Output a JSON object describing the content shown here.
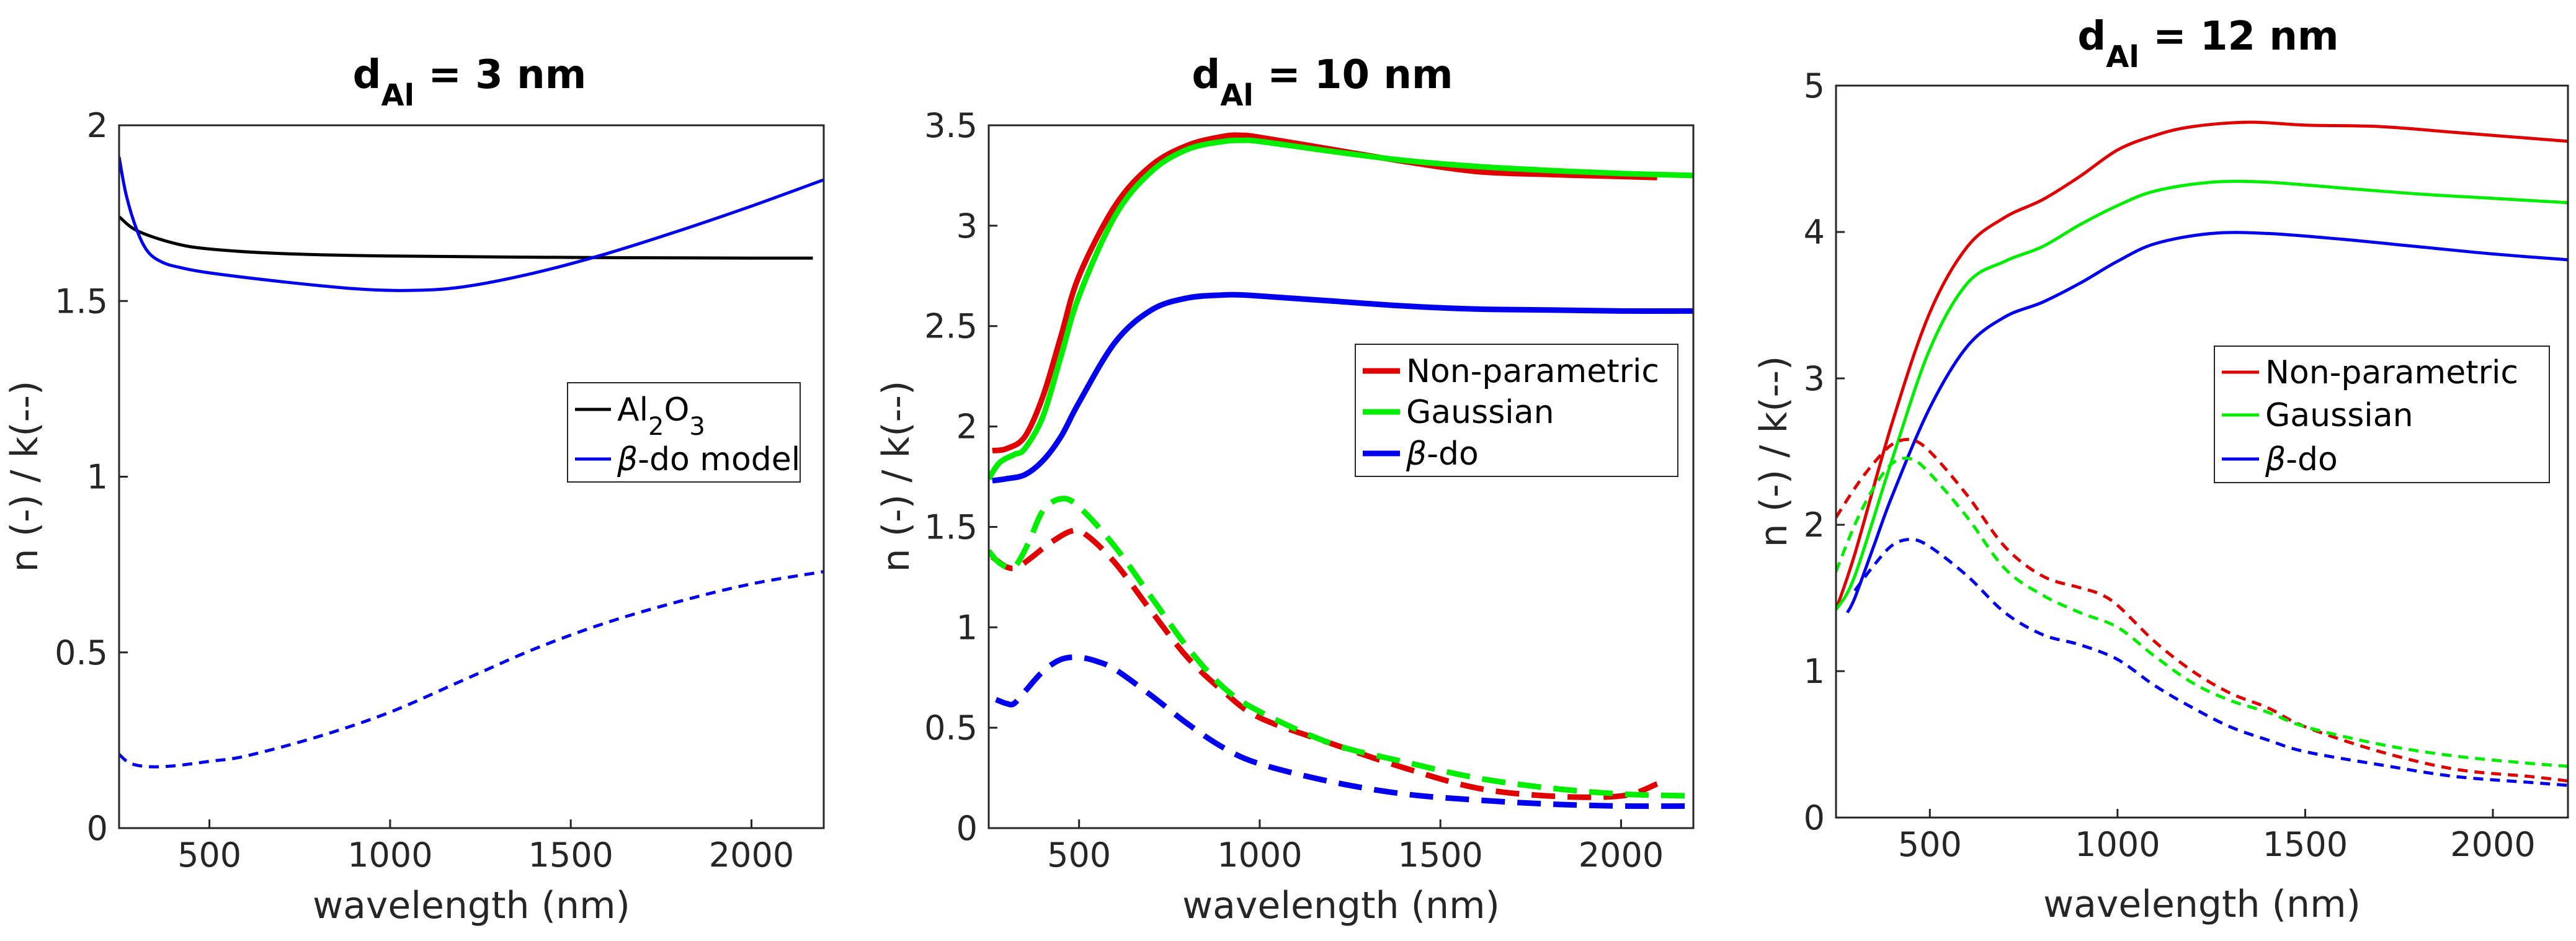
{
  "figure": {
    "panels": [
      {
        "title_main": "d",
        "title_sub": "Al",
        "title_rest": " = 3 nm",
        "xlabel": "wavelength (nm)",
        "ylabel": "n (-) / k(--)",
        "xticks": [
          "500",
          "1000",
          "1500",
          "2000"
        ],
        "yticks": [
          "0",
          "0.5",
          "1",
          "1.5",
          "2"
        ],
        "legend": [
          {
            "pre": "Al",
            "sub1": "2",
            "mid": "O",
            "sub2": "3",
            "post": ""
          },
          {
            "pre": "",
            "greek": "β",
            "post": "-do model"
          }
        ]
      },
      {
        "title_main": "d",
        "title_sub": "Al",
        "title_rest": " = 10 nm",
        "xlabel": "wavelength (nm)",
        "ylabel": "n (-) / k(--)",
        "xticks": [
          "500",
          "1000",
          "1500",
          "2000"
        ],
        "yticks": [
          "0",
          "0.5",
          "1",
          "1.5",
          "2",
          "2.5",
          "3",
          "3.5"
        ],
        "legend": [
          {
            "pre": "Non-parametric"
          },
          {
            "pre": "Gaussian"
          },
          {
            "pre": "",
            "greek": "β",
            "post": "-do"
          }
        ]
      },
      {
        "title_main": "d",
        "title_sub": "Al",
        "title_rest": " = 12 nm",
        "xlabel": "wavelength (nm)",
        "ylabel": "n (-) / k(--)",
        "xticks": [
          "500",
          "1000",
          "1500",
          "2000"
        ],
        "yticks": [
          "0",
          "1",
          "2",
          "3",
          "4",
          "5"
        ],
        "legend": [
          {
            "pre": "Non-parametric"
          },
          {
            "pre": "Gaussian"
          },
          {
            "pre": "",
            "greek": "β",
            "post": "-do"
          }
        ]
      }
    ]
  },
  "chart_data": [
    {
      "type": "line",
      "title": "dAl = 3 nm",
      "xlabel": "wavelength (nm)",
      "ylabel": "n (-) / k(--)",
      "xlim": [
        250,
        2200
      ],
      "ylim": [
        0,
        2
      ],
      "series": [
        {
          "name": "Al2O3",
          "kind": "n",
          "color": "#000000",
          "dash": "solid",
          "weight": "thin",
          "x": [
            250,
            300,
            400,
            500,
            700,
            1000,
            1500,
            2000,
            2170
          ],
          "y": [
            1.74,
            1.7,
            1.665,
            1.648,
            1.635,
            1.628,
            1.624,
            1.622,
            1.622
          ]
        },
        {
          "name": "β-do model",
          "kind": "n",
          "color": "#0000ee",
          "dash": "solid",
          "weight": "thin",
          "x": [
            250,
            270,
            300,
            330,
            370,
            420,
            500,
            700,
            900,
            1050,
            1200,
            1400,
            1600,
            1800,
            2000,
            2200
          ],
          "y": [
            1.91,
            1.8,
            1.7,
            1.64,
            1.61,
            1.595,
            1.58,
            1.555,
            1.535,
            1.53,
            1.54,
            1.58,
            1.635,
            1.7,
            1.77,
            1.845
          ]
        },
        {
          "name": "β-do model (k)",
          "kind": "k",
          "color": "#0000ee",
          "dash": "dashed",
          "weight": "thin",
          "x": [
            250,
            280,
            330,
            400,
            500,
            600,
            800,
            1000,
            1200,
            1400,
            1600,
            1800,
            2000,
            2200
          ],
          "y": [
            0.21,
            0.185,
            0.175,
            0.177,
            0.19,
            0.205,
            0.26,
            0.33,
            0.42,
            0.51,
            0.585,
            0.645,
            0.695,
            0.73
          ]
        }
      ]
    },
    {
      "type": "line",
      "title": "dAl = 10 nm",
      "xlabel": "wavelength (nm)",
      "ylabel": "n (-) / k(--)",
      "xlim": [
        250,
        2200
      ],
      "ylim": [
        0,
        3.5
      ],
      "series": [
        {
          "name": "Non-parametric",
          "kind": "n",
          "color": "#e00000",
          "dash": "solid",
          "weight": "thick",
          "x": [
            260,
            300,
            350,
            400,
            450,
            500,
            600,
            700,
            800,
            900,
            950,
            1000,
            1200,
            1400,
            1600,
            1800,
            2000,
            2100
          ],
          "y": [
            1.88,
            1.89,
            1.95,
            2.15,
            2.45,
            2.75,
            3.1,
            3.3,
            3.4,
            3.445,
            3.45,
            3.44,
            3.38,
            3.32,
            3.27,
            3.255,
            3.245,
            3.24
          ]
        },
        {
          "name": "Gaussian",
          "kind": "n",
          "color": "#00ee00",
          "dash": "solid",
          "weight": "thick",
          "x": [
            250,
            280,
            320,
            350,
            400,
            450,
            500,
            600,
            700,
            800,
            900,
            950,
            1000,
            1200,
            1400,
            1600,
            1800,
            2000,
            2200
          ],
          "y": [
            1.74,
            1.82,
            1.86,
            1.89,
            2.05,
            2.35,
            2.65,
            3.05,
            3.27,
            3.38,
            3.42,
            3.425,
            3.42,
            3.37,
            3.325,
            3.295,
            3.275,
            3.26,
            3.25
          ]
        },
        {
          "name": "β-do",
          "kind": "n",
          "color": "#0000ee",
          "dash": "solid",
          "weight": "thick",
          "x": [
            260,
            300,
            350,
            400,
            450,
            500,
            600,
            700,
            800,
            900,
            950,
            1000,
            1200,
            1400,
            1600,
            1800,
            2000,
            2200
          ],
          "y": [
            1.73,
            1.74,
            1.76,
            1.83,
            1.95,
            2.12,
            2.42,
            2.58,
            2.64,
            2.655,
            2.655,
            2.65,
            2.625,
            2.6,
            2.585,
            2.58,
            2.575,
            2.575
          ]
        },
        {
          "name": "Non-parametric (k)",
          "kind": "k",
          "color": "#e00000",
          "dash": "dashed",
          "weight": "thick",
          "x": [
            260,
            300,
            330,
            370,
            420,
            480,
            520,
            600,
            700,
            800,
            900,
            1000,
            1200,
            1400,
            1600,
            1800,
            2000,
            2100
          ],
          "y": [
            1.35,
            1.3,
            1.3,
            1.35,
            1.42,
            1.48,
            1.46,
            1.32,
            1.08,
            0.85,
            0.68,
            0.55,
            0.42,
            0.3,
            0.2,
            0.16,
            0.16,
            0.22
          ]
        },
        {
          "name": "Gaussian (k)",
          "kind": "k",
          "color": "#00ee00",
          "dash": "dashed",
          "weight": "thick",
          "x": [
            250,
            280,
            320,
            360,
            400,
            450,
            500,
            600,
            700,
            800,
            900,
            1000,
            1200,
            1400,
            1600,
            1800,
            2000,
            2200
          ],
          "y": [
            1.38,
            1.32,
            1.3,
            1.42,
            1.58,
            1.64,
            1.6,
            1.4,
            1.15,
            0.9,
            0.7,
            0.58,
            0.42,
            0.33,
            0.25,
            0.2,
            0.17,
            0.16
          ]
        },
        {
          "name": "β-do (k)",
          "kind": "k",
          "color": "#0000ee",
          "dash": "dashed",
          "weight": "thick",
          "x": [
            270,
            300,
            320,
            350,
            400,
            450,
            500,
            550,
            600,
            700,
            800,
            900,
            1000,
            1200,
            1400,
            1600,
            1800,
            2000,
            2200
          ],
          "y": [
            0.64,
            0.62,
            0.62,
            0.68,
            0.78,
            0.84,
            0.85,
            0.83,
            0.79,
            0.66,
            0.52,
            0.4,
            0.32,
            0.23,
            0.17,
            0.14,
            0.12,
            0.11,
            0.11
          ]
        }
      ]
    },
    {
      "type": "line",
      "title": "dAl = 12 nm",
      "xlabel": "wavelength (nm)",
      "ylabel": "n (-) / k(--)",
      "xlim": [
        250,
        2200
      ],
      "ylim": [
        0,
        5
      ],
      "series": [
        {
          "name": "Non-parametric",
          "kind": "n",
          "color": "#e00000",
          "dash": "solid",
          "weight": "thin",
          "x": [
            250,
            300,
            400,
            500,
            600,
            700,
            800,
            900,
            1000,
            1100,
            1200,
            1350,
            1500,
            1700,
            1900,
            2100,
            2200
          ],
          "y": [
            1.42,
            1.8,
            2.7,
            3.45,
            3.9,
            4.1,
            4.22,
            4.38,
            4.56,
            4.66,
            4.72,
            4.75,
            4.73,
            4.72,
            4.68,
            4.64,
            4.62
          ]
        },
        {
          "name": "Gaussian",
          "kind": "n",
          "color": "#00ee00",
          "dash": "solid",
          "weight": "thin",
          "x": [
            250,
            300,
            400,
            500,
            600,
            700,
            800,
            900,
            1000,
            1100,
            1250,
            1400,
            1600,
            1800,
            2000,
            2200
          ],
          "y": [
            1.42,
            1.65,
            2.45,
            3.2,
            3.65,
            3.8,
            3.9,
            4.05,
            4.18,
            4.28,
            4.34,
            4.34,
            4.3,
            4.26,
            4.23,
            4.2
          ]
        },
        {
          "name": "β-do",
          "kind": "n",
          "color": "#0000ee",
          "dash": "solid",
          "weight": "thin",
          "x": [
            280,
            300,
            350,
            400,
            500,
            600,
            700,
            800,
            900,
            1000,
            1100,
            1250,
            1400,
            1600,
            1800,
            2000,
            2200
          ],
          "y": [
            1.4,
            1.5,
            1.85,
            2.2,
            2.8,
            3.22,
            3.42,
            3.52,
            3.65,
            3.8,
            3.92,
            3.99,
            3.99,
            3.95,
            3.9,
            3.85,
            3.81
          ]
        },
        {
          "name": "Non-parametric (k)",
          "kind": "k",
          "color": "#e00000",
          "dash": "dashed",
          "weight": "thin",
          "x": [
            250,
            300,
            350,
            400,
            450,
            500,
            600,
            700,
            800,
            900,
            950,
            1000,
            1100,
            1200,
            1300,
            1400,
            1500,
            1700,
            1900,
            2100,
            2200
          ],
          "y": [
            2.05,
            2.25,
            2.42,
            2.55,
            2.58,
            2.5,
            2.2,
            1.85,
            1.65,
            1.57,
            1.53,
            1.45,
            1.2,
            1.0,
            0.85,
            0.75,
            0.62,
            0.45,
            0.33,
            0.28,
            0.25
          ]
        },
        {
          "name": "Gaussian (k)",
          "kind": "k",
          "color": "#00ee00",
          "dash": "dashed",
          "weight": "thin",
          "x": [
            250,
            300,
            350,
            400,
            450,
            500,
            600,
            700,
            800,
            900,
            1000,
            1100,
            1200,
            1300,
            1400,
            1500,
            1700,
            1900,
            2100,
            2200
          ],
          "y": [
            1.68,
            2.0,
            2.25,
            2.42,
            2.45,
            2.35,
            2.05,
            1.7,
            1.52,
            1.4,
            1.3,
            1.1,
            0.92,
            0.8,
            0.72,
            0.62,
            0.5,
            0.42,
            0.37,
            0.35
          ]
        },
        {
          "name": "β-do (k)",
          "kind": "k",
          "color": "#0000ee",
          "dash": "dashed",
          "weight": "thin",
          "x": [
            300,
            350,
            400,
            450,
            500,
            600,
            700,
            800,
            900,
            1000,
            1100,
            1200,
            1300,
            1400,
            1500,
            1700,
            1900,
            2100,
            2200
          ],
          "y": [
            1.55,
            1.72,
            1.86,
            1.9,
            1.85,
            1.65,
            1.4,
            1.25,
            1.18,
            1.08,
            0.9,
            0.75,
            0.62,
            0.53,
            0.45,
            0.36,
            0.28,
            0.24,
            0.22
          ]
        }
      ]
    }
  ]
}
